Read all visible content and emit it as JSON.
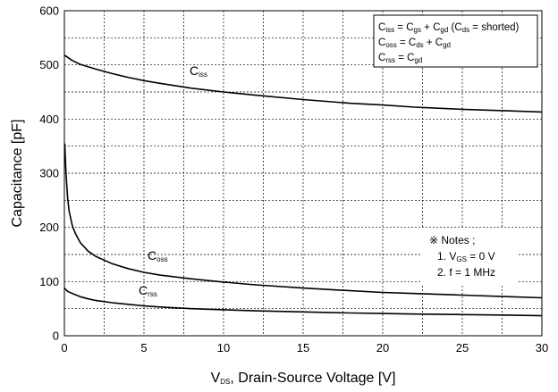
{
  "chart_data": {
    "type": "line",
    "xlabel": {
      "main": "V",
      "sub": "DS",
      "rest": ", Drain-Source Voltage [V]"
    },
    "ylabel": "Capacitance [pF]",
    "xlim": [
      0,
      30
    ],
    "ylim": [
      0,
      600
    ],
    "xticks": [
      0,
      5,
      10,
      15,
      20,
      25,
      30
    ],
    "yticks": [
      0,
      100,
      200,
      300,
      400,
      500,
      600
    ],
    "grid": true,
    "series": [
      {
        "label_main": "C",
        "label_sub": "iss",
        "x": [
          0,
          0.5,
          1,
          2,
          3,
          4,
          5,
          6,
          8,
          10,
          12,
          15,
          18,
          20,
          22,
          25,
          28,
          30
        ],
        "y": [
          518,
          508,
          501,
          492,
          484,
          477,
          471,
          466,
          457,
          450,
          444,
          436,
          429,
          426,
          422,
          418,
          415,
          413
        ]
      },
      {
        "label_main": "C",
        "label_sub": "oss",
        "x": [
          0.02,
          0.1,
          0.2,
          0.3,
          0.5,
          0.7,
          1,
          1.5,
          2,
          3,
          4,
          5,
          6,
          8,
          10,
          12,
          15,
          18,
          20,
          22,
          25,
          28,
          30
        ],
        "y": [
          355,
          300,
          255,
          230,
          203,
          188,
          172,
          156,
          146,
          133,
          124,
          117,
          112,
          105,
          99,
          94,
          88,
          83,
          80,
          78,
          75,
          72,
          70
        ]
      },
      {
        "label_main": "C",
        "label_sub": "rss",
        "x": [
          0,
          0.2,
          0.5,
          1,
          1.5,
          2,
          3,
          4,
          5,
          6,
          8,
          10,
          12,
          15,
          18,
          20,
          22,
          25,
          28,
          30
        ],
        "y": [
          88,
          82,
          78,
          72,
          68,
          65,
          61,
          58,
          55,
          53,
          50,
          48,
          46,
          44,
          42,
          41,
          40,
          39,
          38,
          37
        ]
      }
    ],
    "legend_box": {
      "lines": [
        [
          {
            "t": "C"
          },
          {
            "t": "iss",
            "sub": true
          },
          {
            "t": " = C"
          },
          {
            "t": "gs",
            "sub": true
          },
          {
            "t": " + C"
          },
          {
            "t": "gd",
            "sub": true
          },
          {
            "t": " (C"
          },
          {
            "t": "ds",
            "sub": true
          },
          {
            "t": " = shorted)"
          }
        ],
        [
          {
            "t": "C"
          },
          {
            "t": "oss",
            "sub": true
          },
          {
            "t": " = C"
          },
          {
            "t": "ds",
            "sub": true
          },
          {
            "t": " + C"
          },
          {
            "t": "gd",
            "sub": true
          }
        ],
        [
          {
            "t": "C"
          },
          {
            "t": "rss",
            "sub": true
          },
          {
            "t": " = C"
          },
          {
            "t": "gd",
            "sub": true
          }
        ]
      ]
    },
    "notes": {
      "lines": [
        [
          {
            "t": "※ Notes ;"
          }
        ],
        [
          {
            "t": "1. V"
          },
          {
            "t": "GS",
            "sub": true
          },
          {
            "t": " = 0 V"
          }
        ],
        [
          {
            "t": "2. f = 1 MHz"
          }
        ]
      ]
    }
  }
}
